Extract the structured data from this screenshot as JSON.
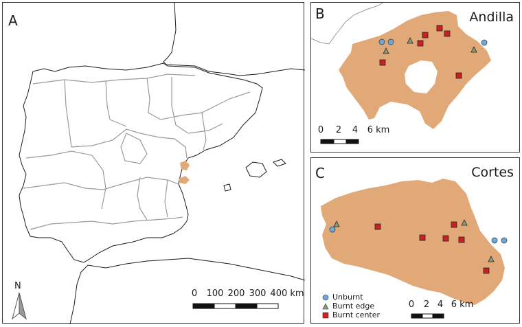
{
  "panel_a": {
    "label": "A",
    "north_label": "N",
    "scale": {
      "ticks": [
        "0",
        "100",
        "200",
        "300",
        "400 km"
      ]
    }
  },
  "panel_b": {
    "label": "B",
    "title": "Andilla",
    "scale": {
      "ticks": [
        "0",
        "2",
        "4",
        "6 km"
      ]
    }
  },
  "panel_c": {
    "label": "C",
    "title": "Cortes",
    "scale": {
      "ticks": [
        "0",
        "2",
        "4",
        "6 km"
      ]
    },
    "legend": [
      {
        "label": "Unburnt",
        "symbol": "circle",
        "color": "#6fa8dc"
      },
      {
        "label": "Burnt edge",
        "symbol": "triangle",
        "color": "#8a9a7e"
      },
      {
        "label": "Burnt center",
        "symbol": "square",
        "color": "#cc1f1f"
      }
    ]
  },
  "colors": {
    "burnt_area": "#e0a977",
    "borders": "#9a9a9a",
    "coast": "#1a1a1a"
  }
}
